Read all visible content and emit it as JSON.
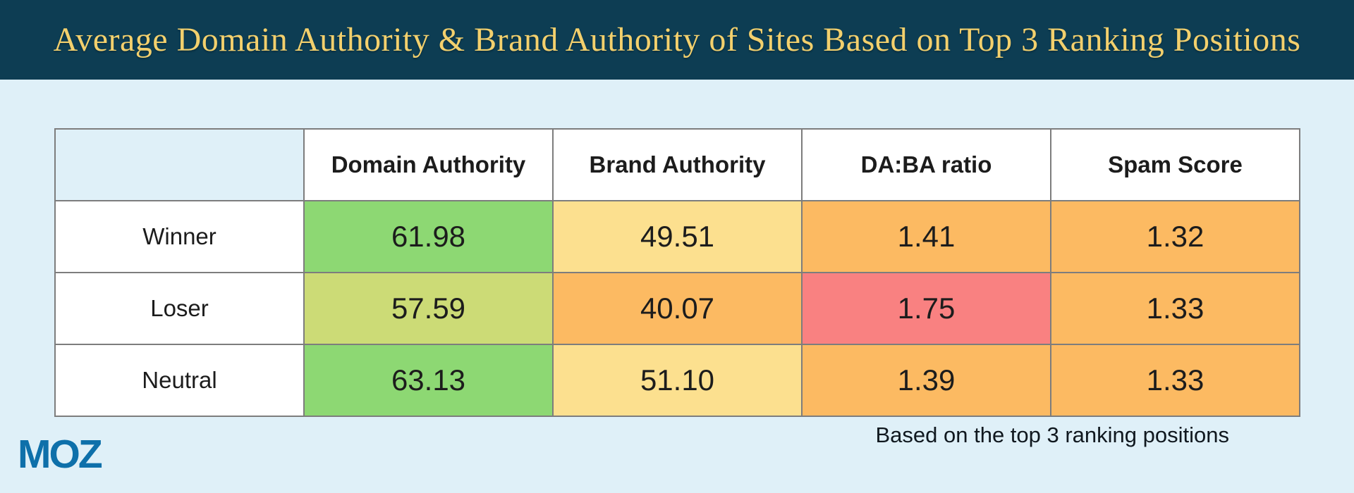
{
  "title": "Average Domain Authority & Brand Authority of Sites Based on Top 3 Ranking Positions",
  "header": {
    "bg": "#0d3d53",
    "title_color": "#f3d06d"
  },
  "page": {
    "bg": "#dff0f8",
    "border": "#7d7d7d",
    "text": "#1c1c1c"
  },
  "table": {
    "columns": [
      "Domain Authority",
      "Brand Authority",
      "DA:BA ratio",
      "Spam Score"
    ],
    "rows": [
      {
        "label": "Winner",
        "values": [
          "61.98",
          "49.51",
          "1.41",
          "1.32"
        ],
        "colors": [
          "#8dd873",
          "#fce08f",
          "#fcba62",
          "#fcba62"
        ]
      },
      {
        "label": "Loser",
        "values": [
          "57.59",
          "40.07",
          "1.75",
          "1.33"
        ],
        "colors": [
          "#ccdb76",
          "#fcba62",
          "#f98181",
          "#fcba62"
        ]
      },
      {
        "label": "Neutral",
        "values": [
          "63.13",
          "51.10",
          "1.39",
          "1.33"
        ],
        "colors": [
          "#8dd873",
          "#fce08f",
          "#fcba62",
          "#fcba62"
        ]
      }
    ]
  },
  "footer": {
    "logo_text": "MOZ",
    "logo_color": "#0e70aa",
    "note": "Based on the top 3 ranking positions"
  },
  "chart_data": {
    "type": "table",
    "title": "Average Domain Authority & Brand Authority of Sites Based on Top 3 Ranking Positions",
    "columns": [
      "",
      "Domain Authority",
      "Brand Authority",
      "DA:BA ratio",
      "Spam Score"
    ],
    "rows": [
      [
        "Winner",
        61.98,
        49.51,
        1.41,
        1.32
      ],
      [
        "Loser",
        57.59,
        40.07,
        1.75,
        1.33
      ],
      [
        "Neutral",
        63.13,
        51.1,
        1.39,
        1.33
      ]
    ],
    "cell_color_semantics": {
      "green": "#8dd873",
      "yellow_green": "#ccdb76",
      "light_yellow": "#fce08f",
      "orange": "#fcba62",
      "red": "#f98181"
    },
    "note": "Based on the top 3 ranking positions",
    "source_brand": "MOZ"
  }
}
